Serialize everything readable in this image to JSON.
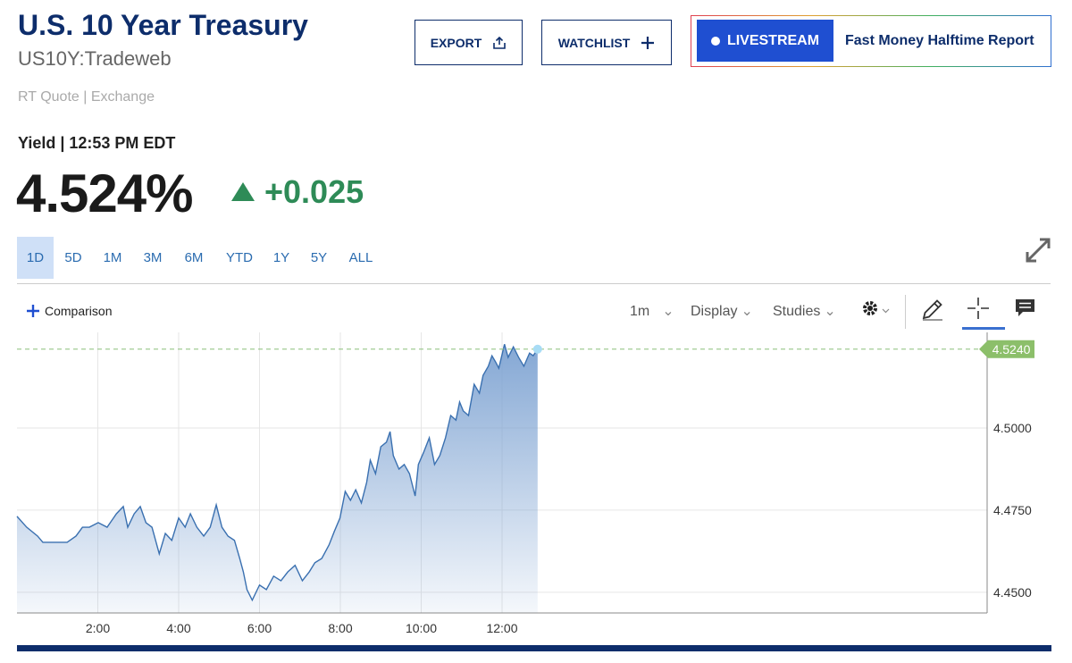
{
  "header": {
    "title": "U.S. 10 Year Treasury",
    "symbol": "US10Y:Tradeweb",
    "quote_source": "RT Quote | Exchange",
    "quote_time": "Yield | 12:53 PM EDT",
    "price": "4.524%",
    "change": "+0.025"
  },
  "buttons": {
    "export": "EXPORT",
    "watchlist": "WATCHLIST",
    "livestream": "LIVESTREAM",
    "show": "Fast Money Halftime Report"
  },
  "range_tabs": {
    "items": [
      "1D",
      "5D",
      "1M",
      "3M",
      "6M",
      "YTD",
      "1Y",
      "5Y",
      "ALL"
    ],
    "active": 0
  },
  "toolbar": {
    "comparison": "Comparison",
    "interval": "1m",
    "display": "Display",
    "studies": "Studies"
  },
  "chart_data": {
    "type": "area",
    "color": "#3a70b0",
    "x": [
      0,
      0.24,
      0.51,
      0.64,
      0.91,
      1.24,
      1.46,
      1.62,
      1.79,
      2.01,
      2.23,
      2.46,
      2.63,
      2.74,
      2.9,
      3.05,
      3.19,
      3.34,
      3.52,
      3.67,
      3.83,
      4.0,
      4.16,
      4.29,
      4.45,
      4.62,
      4.78,
      4.93,
      5.07,
      5.22,
      5.38,
      5.51,
      5.6,
      5.69,
      5.82,
      6.0,
      6.17,
      6.35,
      6.53,
      6.7,
      6.88,
      7.06,
      7.23,
      7.37,
      7.54,
      7.72,
      7.85,
      7.99,
      8.12,
      8.25,
      8.38,
      8.52,
      8.65,
      8.74,
      8.87,
      9.0,
      9.14,
      9.23,
      9.31,
      9.45,
      9.58,
      9.71,
      9.85,
      9.93,
      10.07,
      10.2,
      10.33,
      10.46,
      10.6,
      10.73,
      10.86,
      10.95,
      11.04,
      11.17,
      11.31,
      11.44,
      11.53,
      11.66,
      11.75,
      11.84,
      11.92,
      12.06,
      12.15,
      12.28,
      12.41,
      12.54,
      12.68,
      12.77,
      12.88
    ],
    "values": [
      4.4731,
      4.4698,
      4.4671,
      4.4652,
      4.4652,
      4.4652,
      4.4671,
      4.4698,
      4.4698,
      4.4712,
      4.4698,
      4.4739,
      4.4761,
      4.4698,
      4.4739,
      4.4761,
      4.4712,
      4.4698,
      4.4617,
      4.4679,
      4.4658,
      4.4726,
      4.4698,
      4.4739,
      4.4698,
      4.4671,
      4.4698,
      4.4766,
      4.4698,
      4.4671,
      4.4658,
      4.4603,
      4.4562,
      4.4508,
      4.4476,
      4.4522,
      4.4508,
      4.4549,
      4.4535,
      4.4562,
      4.4582,
      4.4535,
      4.4562,
      4.459,
      4.4603,
      4.4644,
      4.4685,
      4.4726,
      4.4807,
      4.478,
      4.4812,
      4.4772,
      4.4834,
      4.4902,
      4.4861,
      4.4943,
      4.4957,
      4.4989,
      4.4916,
      4.4875,
      4.4889,
      4.4861,
      4.4793,
      4.4889,
      4.4929,
      4.497,
      4.4889,
      4.4916,
      4.497,
      4.5038,
      4.5024,
      4.5079,
      4.5052,
      4.5038,
      4.5133,
      4.5106,
      4.516,
      4.5188,
      4.522,
      4.5201,
      4.5182,
      4.5255,
      4.5215,
      4.5247,
      4.5215,
      4.5188,
      4.5228,
      4.522,
      4.524
    ],
    "xlim": [
      0,
      24
    ],
    "xticks": [
      {
        "value": 2,
        "label": "2:00"
      },
      {
        "value": 4,
        "label": "4:00"
      },
      {
        "value": 6,
        "label": "6:00"
      },
      {
        "value": 8,
        "label": "8:00"
      },
      {
        "value": 10,
        "label": "10:00"
      },
      {
        "value": 12,
        "label": "12:00"
      }
    ],
    "ylim": [
      4.4437,
      4.5291
    ],
    "yticks": [
      {
        "value": 4.45,
        "label": "4.4500"
      },
      {
        "value": 4.475,
        "label": "4.4750"
      },
      {
        "value": 4.5,
        "label": "4.5000"
      }
    ],
    "grid": true,
    "last_value": {
      "value": 4.524,
      "label": "4.5240"
    }
  }
}
